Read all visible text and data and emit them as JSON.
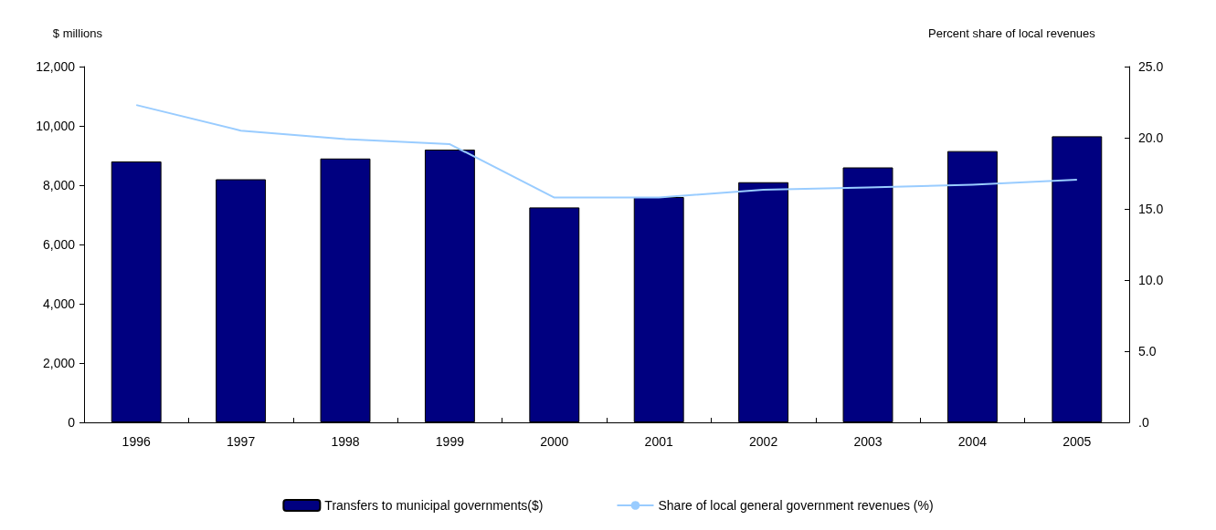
{
  "chart_data": {
    "type": "bar",
    "ylabel": "$ millions",
    "y2label": "Percent share of local revenues",
    "categories": [
      "1996",
      "1997",
      "1998",
      "1999",
      "2000",
      "2001",
      "2002",
      "2003",
      "2004",
      "2005"
    ],
    "series": [
      {
        "name": "Transfers to municipal governments($)",
        "color": "#000080",
        "values": [
          8800,
          8200,
          8900,
          9200,
          7250,
          7600,
          8100,
          8600,
          9150,
          9650
        ]
      },
      {
        "name": "Share of local general government revenues (%)",
        "type": "line",
        "axis": "y2",
        "color": "#99ccff",
        "values": [
          22.3,
          20.5,
          19.9,
          19.55,
          15.8,
          15.8,
          16.35,
          16.5,
          16.7,
          17.05
        ]
      }
    ],
    "ylim": [
      0,
      12000
    ],
    "yticks": [
      {
        "value": 0,
        "label": "0"
      },
      {
        "value": 2000,
        "label": "2,000"
      },
      {
        "value": 4000,
        "label": "4,000"
      },
      {
        "value": 6000,
        "label": "6,000"
      },
      {
        "value": 8000,
        "label": "8,000"
      },
      {
        "value": 10000,
        "label": "10,000"
      },
      {
        "value": 12000,
        "label": "12,000"
      }
    ],
    "y2lim": [
      0,
      25
    ],
    "y2ticks": [
      {
        "value": 0,
        "label": ".0"
      },
      {
        "value": 5,
        "label": "5.0"
      },
      {
        "value": 10,
        "label": "10.0"
      },
      {
        "value": 15,
        "label": "15.0"
      },
      {
        "value": 20,
        "label": "20.0"
      },
      {
        "value": 25,
        "label": "25.0"
      }
    ],
    "grid": false,
    "legend": "bottom",
    "marker": "none",
    "line_style": "solid"
  }
}
